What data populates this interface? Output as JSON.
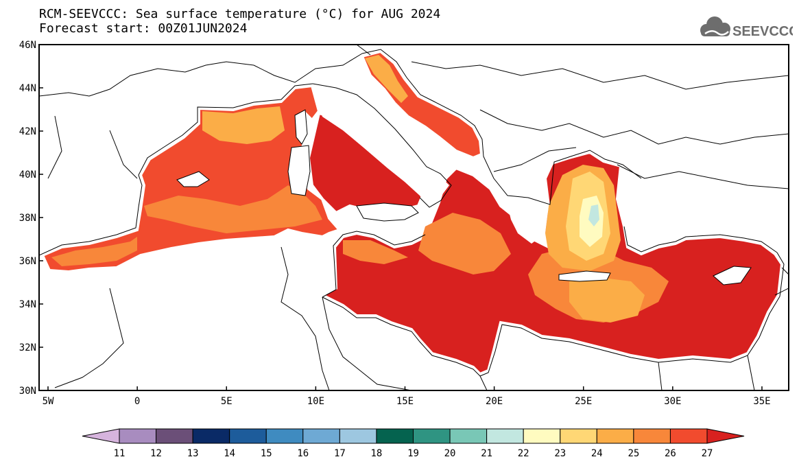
{
  "title": {
    "line1": "RCM-SEEVCCC: Sea surface temperature (°C) for AUG 2024",
    "line2": "Forecast start: 00Z01JUN2024"
  },
  "logo": {
    "text": "SEEVCCC",
    "icon": "cloud-logo-icon",
    "color": "#6d6d6d"
  },
  "map": {
    "lat_range": [
      30,
      46
    ],
    "lon_range": [
      -5.5,
      36.5
    ],
    "lat_ticks": [
      "46N",
      "44N",
      "42N",
      "40N",
      "38N",
      "36N",
      "34N",
      "32N",
      "30N"
    ],
    "lon_ticks": [
      "5W",
      "0",
      "5E",
      "10E",
      "15E",
      "20E",
      "25E",
      "30E",
      "35E"
    ]
  },
  "colorbar": {
    "labels": [
      "11",
      "12",
      "13",
      "14",
      "15",
      "16",
      "17",
      "18",
      "19",
      "20",
      "21",
      "22",
      "23",
      "24",
      "25",
      "26",
      "27"
    ],
    "colors": [
      "#d6b4dd",
      "#a88cbf",
      "#6b4f78",
      "#0a2a66",
      "#1d5c9b",
      "#3f8bc0",
      "#6ea9d4",
      "#9dc7e0",
      "#05634f",
      "#2f9482",
      "#79c7b6",
      "#c2e7e0",
      "#fffbc0",
      "#ffd775",
      "#fbad47",
      "#f8873a",
      "#f14b2e",
      "#d8211f"
    ]
  }
}
